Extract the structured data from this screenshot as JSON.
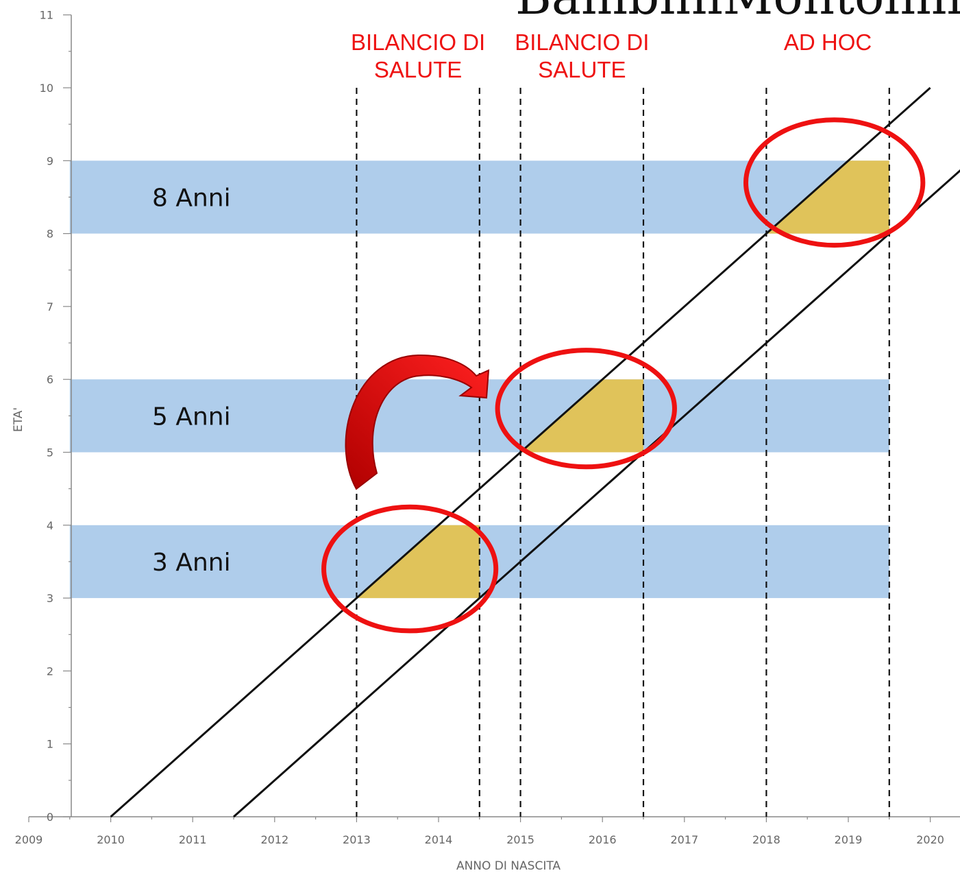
{
  "watermark": "BambiniMontolmi",
  "chart_data": {
    "type": "line",
    "xlabel": "ANNO DI NASCITA",
    "ylabel": "ETA'",
    "xlim": [
      2009,
      2020
    ],
    "ylim": [
      0,
      11
    ],
    "x_ticks": [
      "2009",
      "2010",
      "2011",
      "2012",
      "2013",
      "2014",
      "2015",
      "2016",
      "2017",
      "2018",
      "2019",
      "2020"
    ],
    "y_ticks": [
      "0",
      "1",
      "2",
      "3",
      "4",
      "5",
      "6",
      "7",
      "8",
      "9",
      "10",
      "11"
    ],
    "grid": false,
    "age_bands": [
      {
        "label": "3 Anni",
        "y_range": [
          3,
          4
        ],
        "x_range": [
          2009.5,
          2019.5
        ]
      },
      {
        "label": "5 Anni",
        "y_range": [
          5,
          6
        ],
        "x_range": [
          2009.5,
          2019.5
        ]
      },
      {
        "label": "8 Anni",
        "y_range": [
          8,
          9
        ],
        "x_range": [
          2009.5,
          2019.5
        ]
      }
    ],
    "diagonal_lines": [
      {
        "x": [
          2010,
          2020
        ],
        "y": [
          0,
          10
        ]
      },
      {
        "x": [
          2011.5,
          2020.5
        ],
        "y": [
          0,
          9
        ]
      }
    ],
    "dashed_verticals": [
      {
        "x": 2013,
        "y_top": 10
      },
      {
        "x": 2014.5,
        "y_top": 10
      },
      {
        "x": 2015,
        "y_top": 10
      },
      {
        "x": 2016.5,
        "y_top": 10
      },
      {
        "x": 2018,
        "y_top": 10
      },
      {
        "x": 2019.5,
        "y_top": 10
      }
    ],
    "highlight_regions": [
      {
        "band": "3 Anni",
        "x_start": 2013,
        "x_end": 2014.5,
        "y_range": [
          3,
          4
        ]
      },
      {
        "band": "5 Anni",
        "x_start": 2015,
        "x_end": 2016.5,
        "y_range": [
          5,
          6
        ]
      },
      {
        "band": "8 Anni",
        "x_start": 2018,
        "x_end": 2019.5,
        "y_range": [
          8,
          9
        ]
      }
    ],
    "period_labels": [
      {
        "lines": [
          "BILANCIO DI",
          "SALUTE"
        ],
        "x_range": [
          2013,
          2014.5
        ]
      },
      {
        "lines": [
          "BILANCIO DI",
          "SALUTE"
        ],
        "x_range": [
          2015,
          2016.5
        ]
      },
      {
        "lines": [
          "AD HOC"
        ],
        "x_range": [
          2018,
          2019.5
        ]
      }
    ],
    "circled_regions": [
      {
        "center": [
          2013.65,
          3.4
        ],
        "radius_years": 1.05,
        "radius_age": 0.85
      },
      {
        "center": [
          2015.8,
          5.6
        ],
        "radius_years": 1.08,
        "radius_age": 0.8
      },
      {
        "center": [
          2018.83,
          8.7
        ],
        "radius_years": 1.08,
        "radius_age": 0.86
      }
    ],
    "arrow": {
      "from": "3 Anni",
      "to": "5 Anni"
    },
    "colors": {
      "band": "#afcdeb",
      "highlight": "#e0c35a",
      "circle": "#ee1111",
      "arrow": "#dd1111",
      "line": "#111111",
      "axis": "#888888"
    }
  }
}
